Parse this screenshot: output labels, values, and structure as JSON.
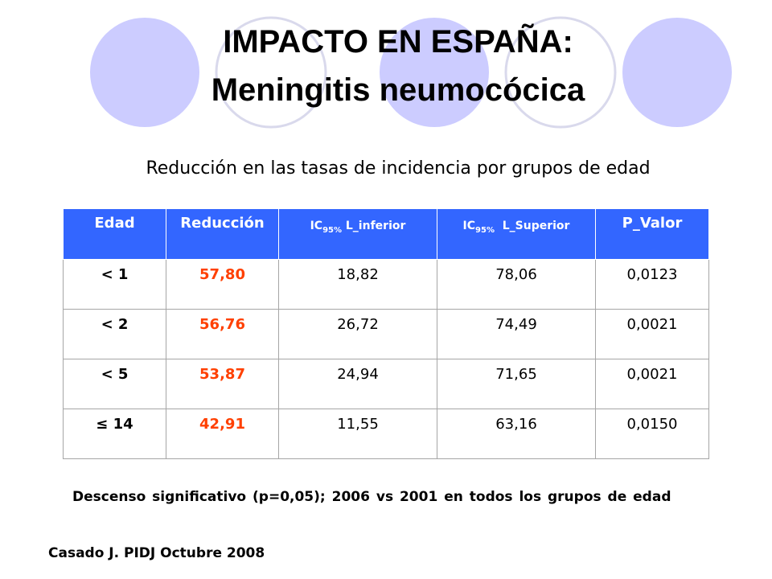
{
  "title": {
    "line1": "IMPACTO EN ESPAÑA:",
    "line2": "Meningitis neumocócica"
  },
  "subtitle": "Reducción en las tasas de incidencia por grupos de edad",
  "table": {
    "headers": {
      "edad": "Edad",
      "reduccion": "Reducción",
      "ic_prefix": "IC",
      "ic_sub": "95%",
      "inferior": " L_inferior",
      "superior": "  L_Superior",
      "pvalor": "P_Valor"
    },
    "rows": [
      {
        "edad": "< 1",
        "reduccion": "57,80",
        "inferior": "18,82",
        "superior": "78,06",
        "pvalor": "0,0123"
      },
      {
        "edad": "< 2",
        "reduccion": "56,76",
        "inferior": "26,72",
        "superior": "74,49",
        "pvalor": "0,0021"
      },
      {
        "edad": "< 5",
        "reduccion": "53,87",
        "inferior": "24,94",
        "superior": "71,65",
        "pvalor": "0,0021"
      },
      {
        "edad": "≤ 14",
        "reduccion": "42,91",
        "inferior": "11,55",
        "superior": "63,16",
        "pvalor": "0,0150"
      }
    ]
  },
  "note": "Descenso significativo (p=0,05); 2006 vs 2001 en todos los grupos de edad",
  "source": "Casado J. PIDJ Octubre 2008",
  "colors": {
    "header_bg": "#3366ff",
    "header_text": "#ffffff",
    "highlight": "#ff4000",
    "circle_fill": "#ccccff",
    "circle_ring": "#d9d9ec"
  }
}
